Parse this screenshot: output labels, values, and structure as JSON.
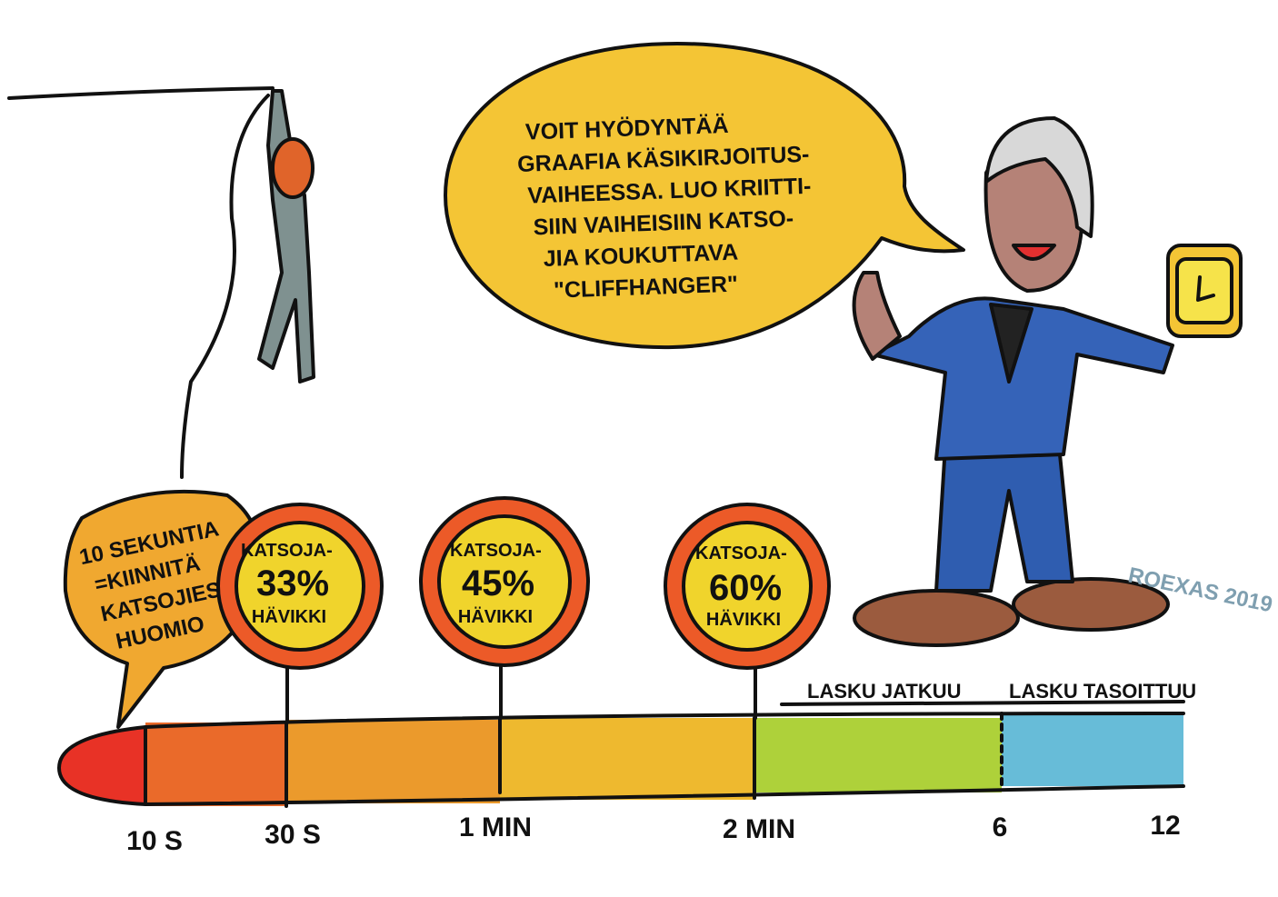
{
  "speech_bubble": {
    "lines": [
      "VOIT HYÖDYNTÄÄ",
      "GRAAFIA KÄSIKIRJOITUS-",
      "VAIHEESSA. LUO KRIITTI-",
      "SIIN VAIHEISIIN KATSO-",
      "JIA KOUKUTTAVA",
      "\"CLIFFHANGER\""
    ]
  },
  "intro_bubble": {
    "lines": [
      "10 SEKUNTIA",
      "=KIINNITÄ",
      "KATSOJIESI",
      "HUOMIO"
    ]
  },
  "signs": [
    {
      "top": "KATSOJA-",
      "value": "33%",
      "bottom": "HÄVIKKI"
    },
    {
      "top": "KATSOJA-",
      "value": "45%",
      "bottom": "HÄVIKKI"
    },
    {
      "top": "KATSOJA-",
      "value": "60%",
      "bottom": "HÄVIKKI"
    }
  ],
  "timeline": {
    "labels": [
      "10 S",
      "30 S",
      "1 MIN",
      "2 MIN",
      "6",
      "12"
    ],
    "phases": [
      "LASKU JATKUU",
      "LASKU TASOITTUU"
    ]
  },
  "signature": "ROEXAS 2019"
}
